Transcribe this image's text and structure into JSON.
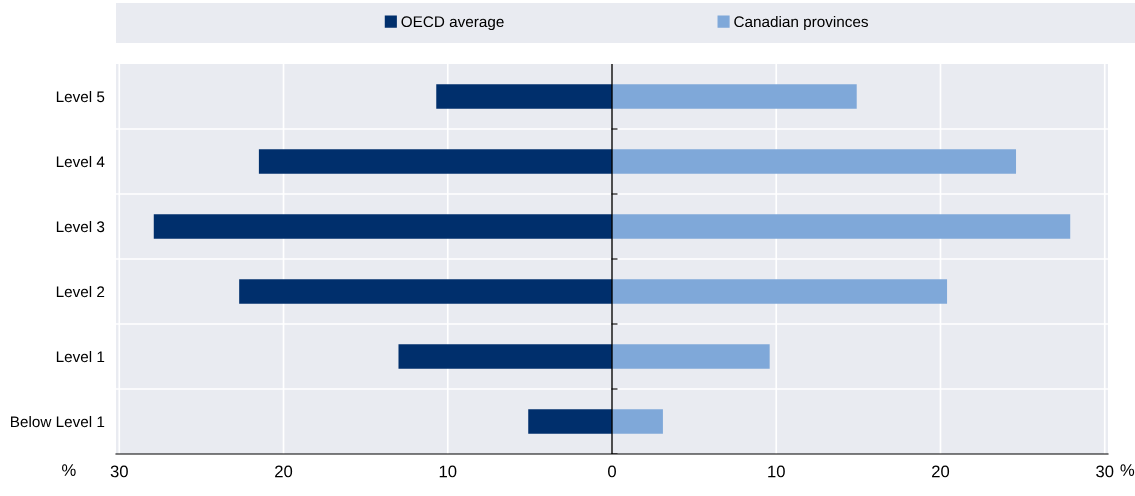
{
  "chart_data": {
    "type": "bar",
    "orientation": "horizontal",
    "stacked": true,
    "categories": [
      "Level 5",
      "Level 4",
      "Level 3",
      "Level 2",
      "Level 1",
      "Below Level 1"
    ],
    "series": [
      {
        "name": "OECD average",
        "color": "#002f6c",
        "values": [
          -10.7,
          -21.5,
          -27.9,
          -22.7,
          -13.0,
          -5.1
        ]
      },
      {
        "name": "Canadian provinces",
        "color": "#7fa8d9",
        "values": [
          14.9,
          24.6,
          27.9,
          20.4,
          9.6,
          3.1
        ]
      }
    ],
    "xlim": [
      -30.2,
      30.2
    ],
    "xticks": [
      {
        "value": -30,
        "label": "30"
      },
      {
        "value": -20,
        "label": "20"
      },
      {
        "value": -10,
        "label": "10"
      },
      0,
      10,
      20,
      30
    ],
    "annotations": [
      "%",
      "%"
    ],
    "grid": true,
    "legend": "top"
  }
}
